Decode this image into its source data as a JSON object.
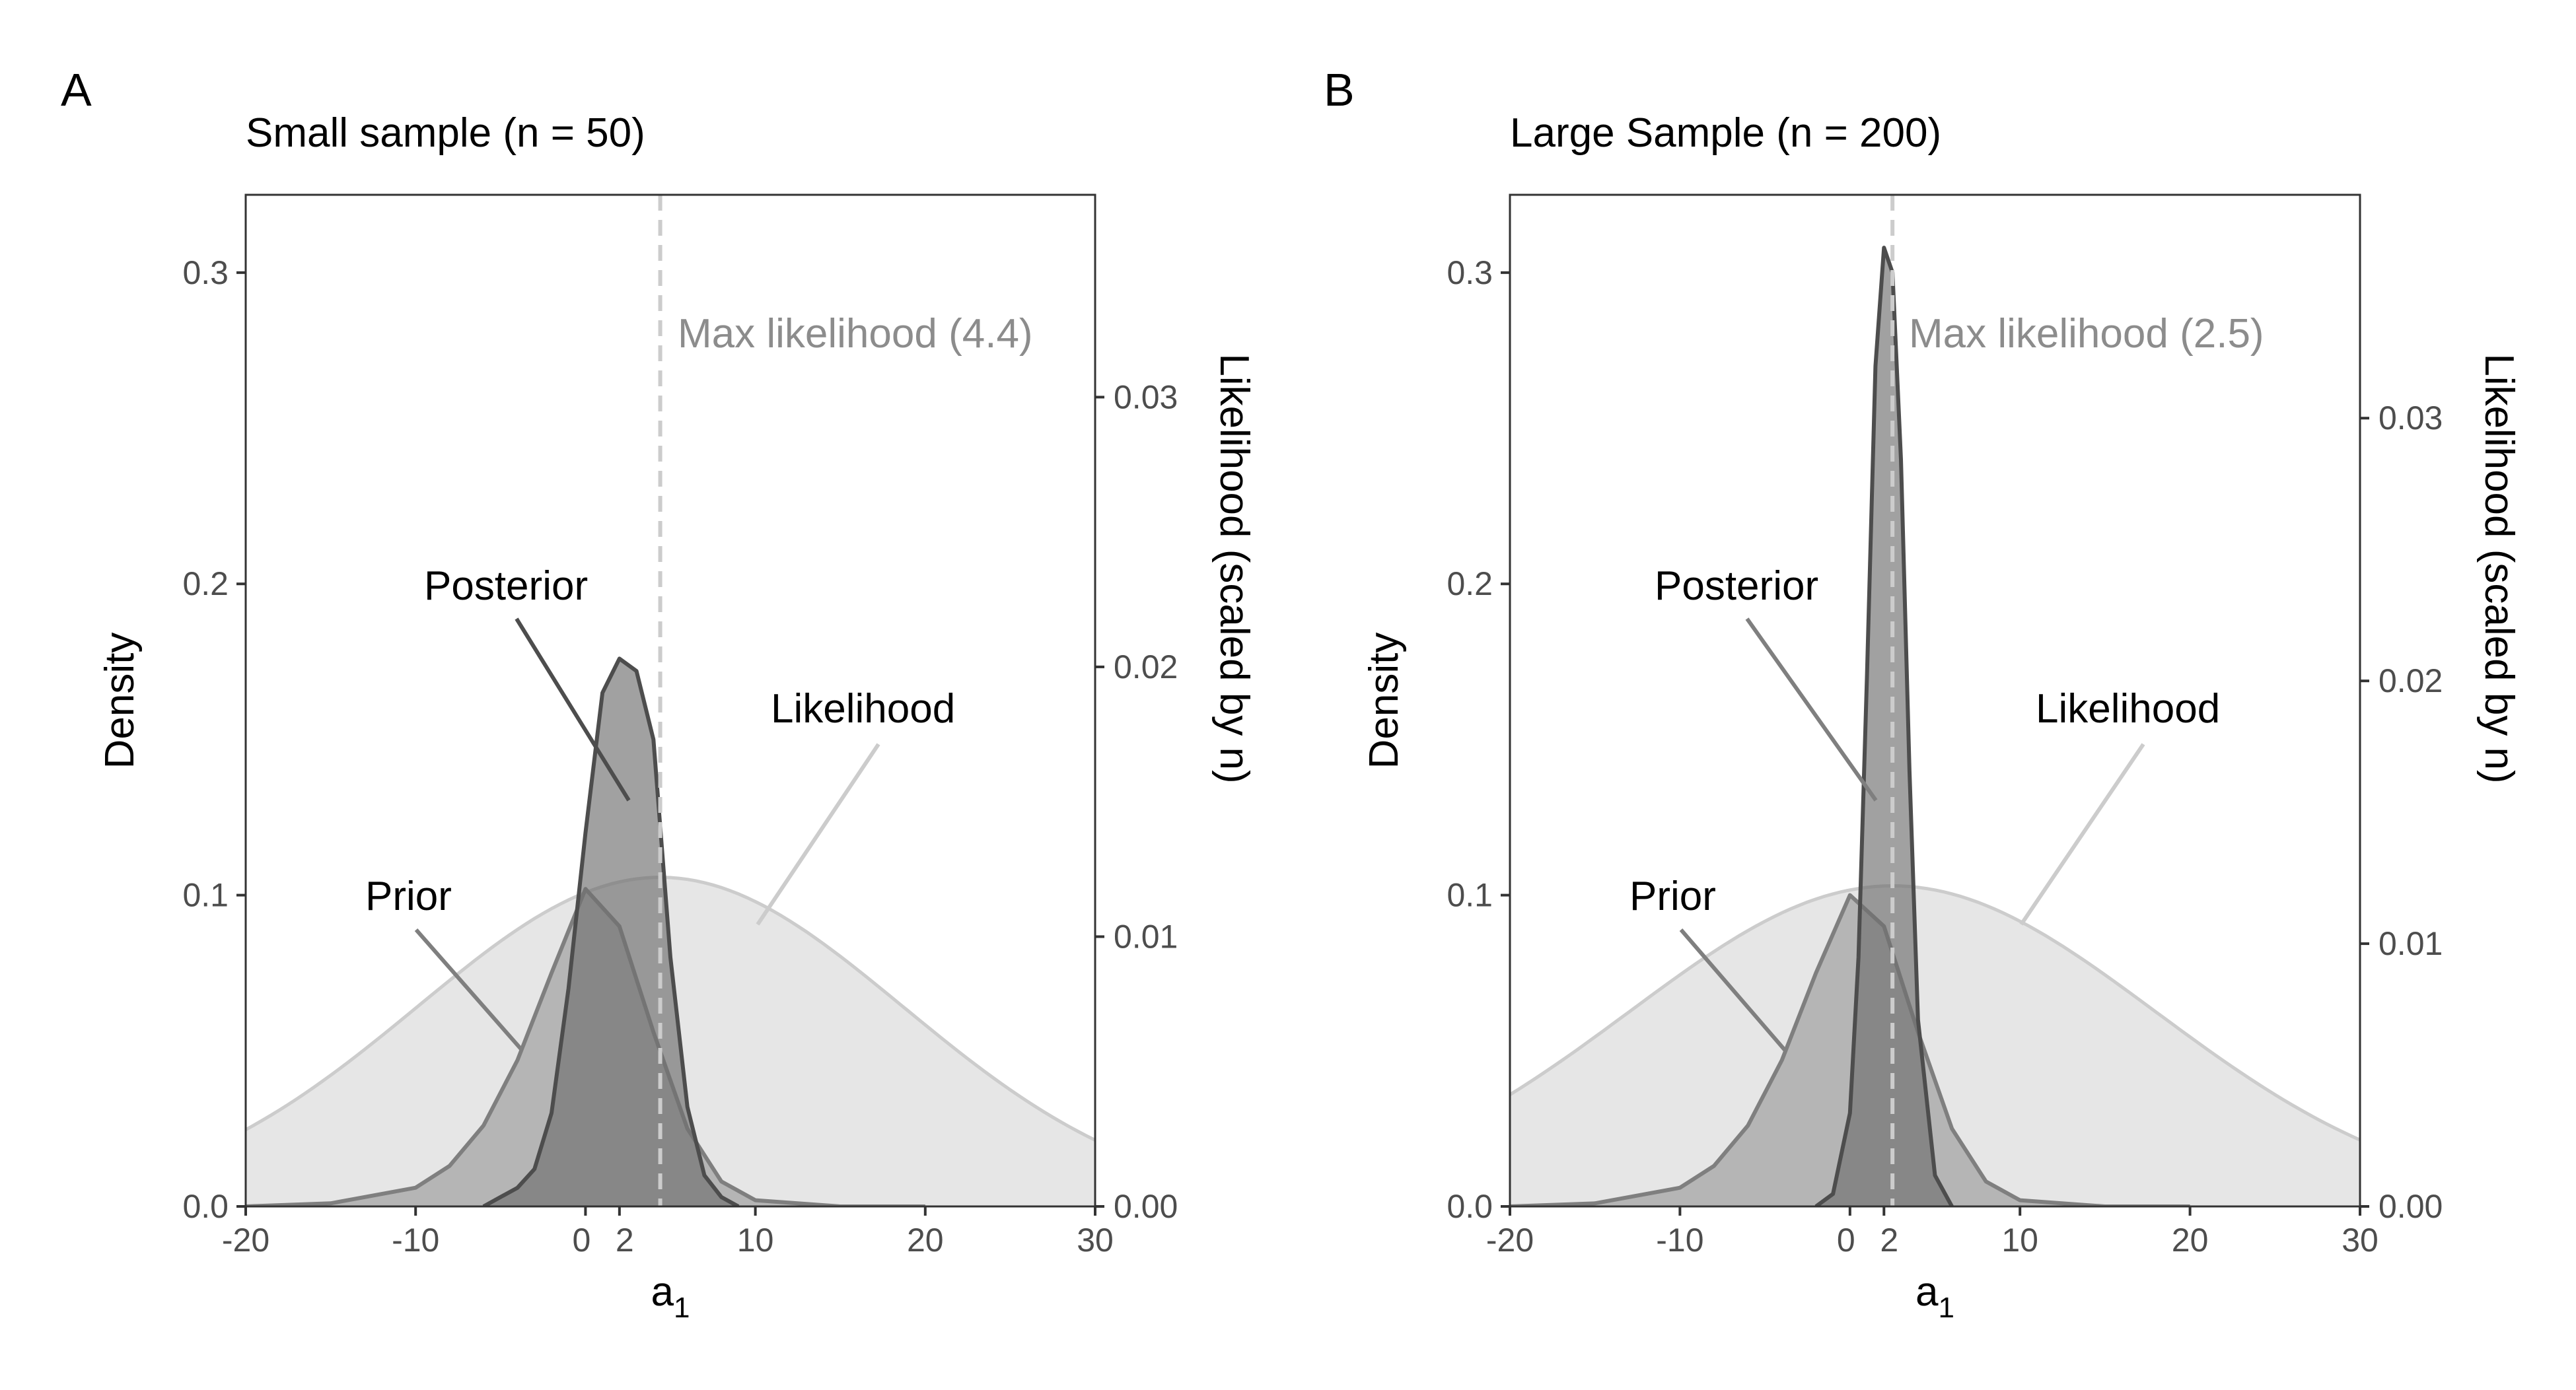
{
  "chart_data": [
    {
      "panel": "A",
      "title": "Small sample (n = 50)",
      "type": "area",
      "xlabel": "a",
      "xlabel_subscript": "1",
      "ylabel": "Density",
      "y2label": "Likelihood (scaled by n)",
      "xlim": [
        -20,
        30
      ],
      "ylim": [
        0,
        0.325
      ],
      "y2lim": [
        0,
        0.0375
      ],
      "xticks": [
        "-20",
        "-10",
        "0",
        "2",
        "10",
        "20",
        "30"
      ],
      "yticks": [
        "0.0",
        "0.1",
        "0.2",
        "0.3"
      ],
      "y2ticks": [
        "0.00",
        "0.01",
        "0.02",
        "0.03"
      ],
      "max_likelihood": {
        "value": 4.4,
        "label": "Max likelihood (4.4)"
      },
      "labels": {
        "prior": "Prior",
        "posterior": "Posterior",
        "likelihood": "Likelihood"
      },
      "likelihood": {
        "mean": 4.4,
        "sd": 14.3,
        "peak": 0.0122,
        "axis": "secondary"
      },
      "series": [
        {
          "name": "Prior",
          "x": [
            -20,
            -15,
            -10,
            -8,
            -6,
            -4,
            -2,
            0,
            2,
            4,
            6,
            8,
            10,
            15,
            20
          ],
          "y": [
            0.0,
            0.001,
            0.006,
            0.013,
            0.026,
            0.047,
            0.075,
            0.102,
            0.09,
            0.056,
            0.025,
            0.008,
            0.002,
            0.0,
            0.0
          ]
        },
        {
          "name": "Posterior",
          "x": [
            -6,
            -4,
            -3,
            -2,
            -1,
            0,
            1,
            2,
            3,
            4,
            5,
            6,
            7,
            8,
            9
          ],
          "y": [
            0.0,
            0.006,
            0.012,
            0.03,
            0.07,
            0.12,
            0.165,
            0.176,
            0.172,
            0.15,
            0.08,
            0.032,
            0.01,
            0.003,
            0.0
          ]
        }
      ]
    },
    {
      "panel": "B",
      "title": "Large Sample (n = 200)",
      "type": "area",
      "xlabel": "a",
      "xlabel_subscript": "1",
      "ylabel": "Density",
      "y2label": "Likelihood (scaled by n)",
      "xlim": [
        -20,
        30
      ],
      "ylim": [
        0,
        0.325
      ],
      "y2lim": [
        0,
        0.0385
      ],
      "xticks": [
        "-20",
        "-10",
        "0",
        "2",
        "10",
        "20",
        "30"
      ],
      "yticks": [
        "0.0",
        "0.1",
        "0.2",
        "0.3"
      ],
      "y2ticks": [
        "0.00",
        "0.01",
        "0.02",
        "0.03"
      ],
      "max_likelihood": {
        "value": 2.5,
        "label": "Max likelihood (2.5)"
      },
      "labels": {
        "prior": "Prior",
        "posterior": "Posterior",
        "likelihood": "Likelihood"
      },
      "likelihood": {
        "mean": 2.5,
        "sd": 15.5,
        "peak": 0.0122,
        "axis": "secondary"
      },
      "series": [
        {
          "name": "Prior",
          "x": [
            -20,
            -15,
            -10,
            -8,
            -6,
            -4,
            -2,
            0,
            2,
            4,
            6,
            8,
            10,
            15,
            20
          ],
          "y": [
            0.0,
            0.001,
            0.006,
            0.013,
            0.026,
            0.047,
            0.075,
            0.1,
            0.09,
            0.056,
            0.025,
            0.008,
            0.002,
            0.0,
            0.0
          ]
        },
        {
          "name": "Posterior",
          "x": [
            -2,
            -1,
            0,
            0.5,
            1,
            1.5,
            2,
            2.5,
            3,
            3.5,
            4,
            5,
            6
          ],
          "y": [
            0.0,
            0.004,
            0.03,
            0.08,
            0.17,
            0.27,
            0.308,
            0.3,
            0.24,
            0.14,
            0.06,
            0.01,
            0.0
          ]
        }
      ]
    }
  ]
}
